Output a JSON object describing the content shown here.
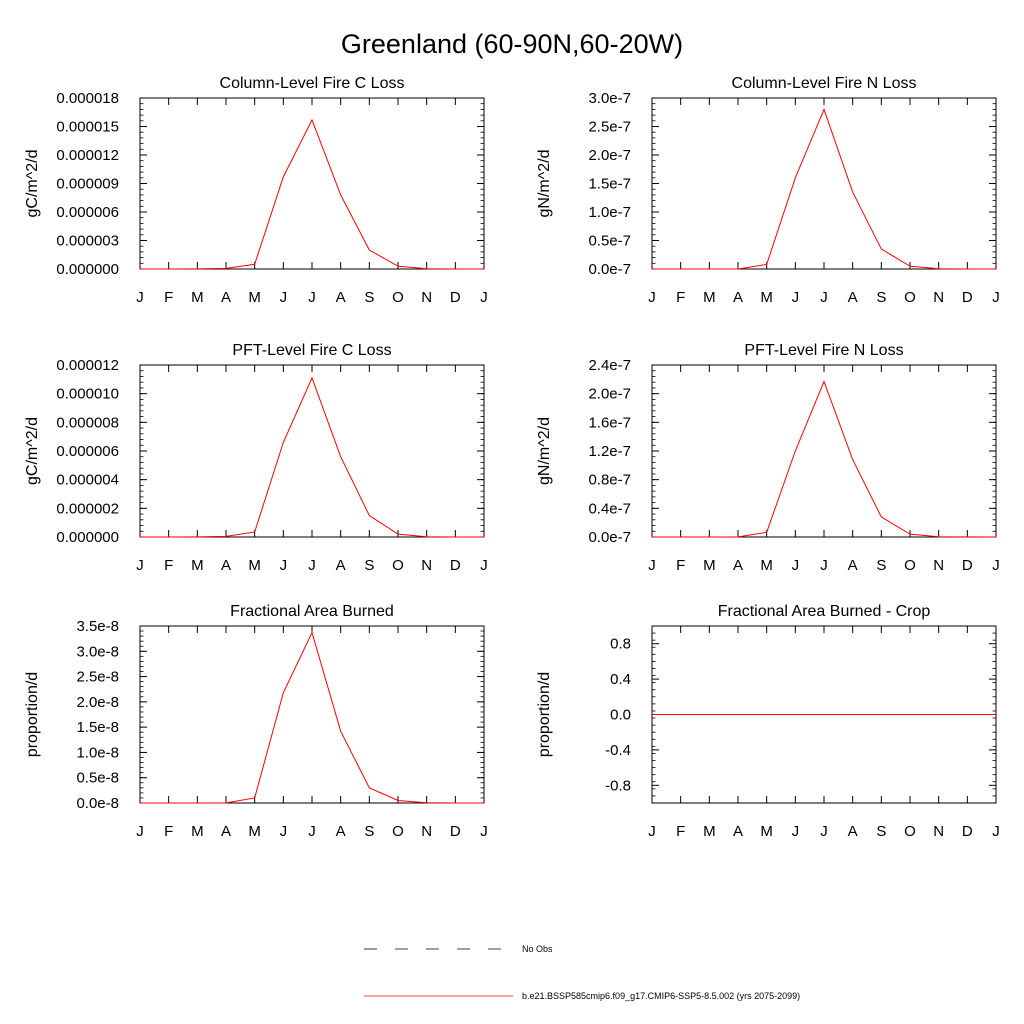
{
  "figure": {
    "title": "Greenland (60-90N,60-20W)"
  },
  "months": [
    "J",
    "F",
    "M",
    "A",
    "M",
    "J",
    "J",
    "A",
    "S",
    "O",
    "N",
    "D",
    "J"
  ],
  "legend": {
    "items": [
      {
        "label": "No Obs",
        "style": "dashed",
        "color": "#000000"
      },
      {
        "label": "b.e21.BSSP585cmip6.f09_g17.CMIP6-SSP5-8.5.002 (yrs 2075-2099)",
        "style": "solid",
        "color": "#ff0000"
      }
    ]
  },
  "chart_data": [
    {
      "type": "line",
      "title": "Column-Level Fire C Loss",
      "ylabel": "gC/m^2/d",
      "ylim": [
        0,
        1.8e-05
      ],
      "yticks": [
        0,
        3e-06,
        6e-06,
        9e-06,
        1.2e-05,
        1.5e-05,
        1.8e-05
      ],
      "ytick_labels": [
        "0.000000",
        "0.000003",
        "0.000006",
        "0.000009",
        "0.000012",
        "0.000015",
        "0.000018"
      ],
      "x": [
        "J",
        "F",
        "M",
        "A",
        "M",
        "J",
        "J",
        "A",
        "S",
        "O",
        "N",
        "D",
        "J"
      ],
      "series": [
        {
          "color": "#ff0000",
          "values": [
            0,
            0,
            1e-08,
            6e-08,
            5e-07,
            9.7e-06,
            1.57e-05,
            7.8e-06,
            2e-06,
            3e-07,
            3e-08,
            5e-09,
            0
          ]
        }
      ]
    },
    {
      "type": "line",
      "title": "Column-Level Fire N Loss",
      "ylabel": "gN/m^2/d",
      "ylim": [
        0,
        3e-07
      ],
      "yticks": [
        0,
        5e-08,
        1e-07,
        1.5e-07,
        2e-07,
        2.5e-07,
        3e-07
      ],
      "ytick_labels": [
        "0.0e-7",
        "0.5e-7",
        "1.0e-7",
        "1.5e-7",
        "2.0e-7",
        "2.5e-7",
        "3.0e-7"
      ],
      "x": [
        "J",
        "F",
        "M",
        "A",
        "M",
        "J",
        "J",
        "A",
        "S",
        "O",
        "N",
        "D",
        "J"
      ],
      "series": [
        {
          "color": "#ff0000",
          "values": [
            0,
            0,
            2e-11,
            1e-10,
            8e-09,
            1.6e-07,
            2.8e-07,
            1.35e-07,
            3.5e-08,
            5e-09,
            5e-10,
            1e-10,
            0
          ]
        }
      ]
    },
    {
      "type": "line",
      "title": "PFT-Level Fire C Loss",
      "ylabel": "gC/m^2/d",
      "ylim": [
        0,
        1.2e-05
      ],
      "yticks": [
        0,
        2e-06,
        4e-06,
        6e-06,
        8e-06,
        1e-05,
        1.2e-05
      ],
      "ytick_labels": [
        "0.000000",
        "0.000002",
        "0.000004",
        "0.000006",
        "0.000008",
        "0.000010",
        "0.000012"
      ],
      "x": [
        "J",
        "F",
        "M",
        "A",
        "M",
        "J",
        "J",
        "A",
        "S",
        "O",
        "N",
        "D",
        "J"
      ],
      "series": [
        {
          "color": "#ff0000",
          "values": [
            0,
            0,
            1e-08,
            4e-08,
            3.5e-07,
            6.6e-06,
            1.11e-05,
            5.6e-06,
            1.5e-06,
            2e-07,
            2e-08,
            4e-09,
            0
          ]
        }
      ]
    },
    {
      "type": "line",
      "title": "PFT-Level Fire N Loss",
      "ylabel": "gN/m^2/d",
      "ylim": [
        0,
        2.4e-07
      ],
      "yticks": [
        0,
        4e-08,
        8e-08,
        1.2e-07,
        1.6e-07,
        2e-07,
        2.4e-07
      ],
      "ytick_labels": [
        "0.0e-7",
        "0.4e-7",
        "0.8e-7",
        "1.2e-7",
        "1.6e-7",
        "2.0e-7",
        "2.4e-7"
      ],
      "x": [
        "J",
        "F",
        "M",
        "A",
        "M",
        "J",
        "J",
        "A",
        "S",
        "O",
        "N",
        "D",
        "J"
      ],
      "series": [
        {
          "color": "#ff0000",
          "values": [
            0,
            0,
            2e-11,
            1e-10,
            6.5e-09,
            1.2e-07,
            2.17e-07,
            1.08e-07,
            2.8e-08,
            4e-09,
            4e-10,
            1e-10,
            0
          ]
        }
      ]
    },
    {
      "type": "line",
      "title": "Fractional Area Burned",
      "ylabel": "proportion/d",
      "ylim": [
        0,
        3.5e-08
      ],
      "yticks": [
        0,
        5e-09,
        1e-08,
        1.5e-08,
        2e-08,
        2.5e-08,
        3e-08,
        3.5e-08
      ],
      "ytick_labels": [
        "0.0e-8",
        "0.5e-8",
        "1.0e-8",
        "1.5e-8",
        "2.0e-8",
        "2.5e-8",
        "3.0e-8",
        "3.5e-8"
      ],
      "x": [
        "J",
        "F",
        "M",
        "A",
        "M",
        "J",
        "J",
        "A",
        "S",
        "O",
        "N",
        "D",
        "J"
      ],
      "series": [
        {
          "color": "#ff0000",
          "values": [
            0,
            0,
            3e-12,
            2e-11,
            1e-09,
            2.18e-08,
            3.37e-08,
            1.42e-08,
            3e-09,
            5e-10,
            6e-11,
            1e-11,
            0
          ]
        }
      ]
    },
    {
      "type": "line",
      "title": "Fractional Area Burned - Crop",
      "ylabel": "proportion/d",
      "ylim": [
        -1.0,
        1.0
      ],
      "yticks": [
        -0.8,
        -0.4,
        0.0,
        0.4,
        0.8
      ],
      "ytick_labels": [
        "-0.8",
        "-0.4",
        "0.0",
        "0.4",
        "0.8"
      ],
      "x": [
        "J",
        "F",
        "M",
        "A",
        "M",
        "J",
        "J",
        "A",
        "S",
        "O",
        "N",
        "D",
        "J"
      ],
      "series": [
        {
          "color": "#ff0000",
          "values": [
            0,
            0,
            0,
            0,
            0,
            0,
            0,
            0,
            0,
            0,
            0,
            0,
            0
          ]
        }
      ]
    }
  ]
}
